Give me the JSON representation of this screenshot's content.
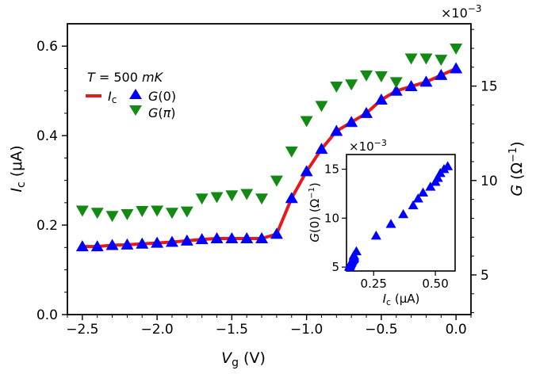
{
  "chart_data": {
    "type": "scatter",
    "annotation": "T = 500 mK",
    "xlabel": "V_g (V)",
    "ylabel_left": "I_c (µA)",
    "ylabel_right": "G (Ω⁻¹)",
    "right_exponent": "×10⁻³",
    "xlim": [
      -2.6,
      0.1
    ],
    "ylim_left": [
      0.0,
      0.65
    ],
    "ylim_right": [
      2.9,
      18.3
    ],
    "x_ticks": [
      -2.5,
      -2.0,
      -1.5,
      -1.0,
      -0.5,
      0.0
    ],
    "x_tick_labels": [
      "−2.5",
      "−2.0",
      "−1.5",
      "−1.0",
      "−0.5",
      "0.0"
    ],
    "y_left_ticks": [
      0.0,
      0.2,
      0.4,
      0.6
    ],
    "y_left_tick_labels": [
      "0.0",
      "0.2",
      "0.4",
      "0.6"
    ],
    "y_right_ticks": [
      5,
      10,
      15
    ],
    "y_right_tick_labels": [
      "5",
      "10",
      "15"
    ],
    "legend": [
      {
        "label": "I_c",
        "marker": "line",
        "color": "#e41a1c"
      },
      {
        "label": "G(0)",
        "marker": "triangle-up",
        "color": "#0000ff"
      },
      {
        "label": "G(π)",
        "marker": "triangle-down",
        "color": "#138a13"
      }
    ],
    "series": [
      {
        "name": "I_c",
        "axis": "left",
        "style": "line",
        "color": "#e41a1c",
        "x": [
          -2.5,
          -2.4,
          -2.3,
          -2.2,
          -2.1,
          -2.0,
          -1.9,
          -1.8,
          -1.7,
          -1.6,
          -1.5,
          -1.4,
          -1.3,
          -1.2,
          -1.1,
          -1.0,
          -0.9,
          -0.8,
          -0.7,
          -0.6,
          -0.5,
          -0.4,
          -0.3,
          -0.2,
          -0.1,
          0.0
        ],
        "y": [
          0.152,
          0.152,
          0.155,
          0.156,
          0.158,
          0.16,
          0.162,
          0.165,
          0.168,
          0.17,
          0.17,
          0.17,
          0.17,
          0.18,
          0.26,
          0.32,
          0.37,
          0.41,
          0.43,
          0.45,
          0.48,
          0.5,
          0.51,
          0.52,
          0.535,
          0.55
        ]
      },
      {
        "name": "G(0)",
        "axis": "left",
        "style": "triangle-up",
        "color": "#0000ff",
        "x": [
          -2.5,
          -2.4,
          -2.3,
          -2.2,
          -2.1,
          -2.0,
          -1.9,
          -1.8,
          -1.7,
          -1.6,
          -1.5,
          -1.4,
          -1.3,
          -1.2,
          -1.1,
          -1.0,
          -0.9,
          -0.8,
          -0.7,
          -0.6,
          -0.5,
          -0.4,
          -0.3,
          -0.2,
          -0.1,
          0.0
        ],
        "y": [
          0.152,
          0.152,
          0.155,
          0.156,
          0.158,
          0.16,
          0.162,
          0.165,
          0.168,
          0.17,
          0.17,
          0.17,
          0.17,
          0.18,
          0.26,
          0.32,
          0.37,
          0.41,
          0.43,
          0.45,
          0.48,
          0.5,
          0.51,
          0.52,
          0.535,
          0.55
        ]
      },
      {
        "name": "G(π)",
        "axis": "left",
        "style": "triangle-down",
        "color": "#138a13",
        "x": [
          -2.5,
          -2.4,
          -2.3,
          -2.2,
          -2.1,
          -2.0,
          -1.9,
          -1.8,
          -1.7,
          -1.6,
          -1.5,
          -1.4,
          -1.3,
          -1.2,
          -1.1,
          -1.0,
          -0.9,
          -0.8,
          -0.7,
          -0.6,
          -0.5,
          -0.4,
          -0.3,
          -0.2,
          -0.1,
          0.0
        ],
        "y": [
          0.233,
          0.228,
          0.221,
          0.225,
          0.232,
          0.233,
          0.228,
          0.231,
          0.26,
          0.263,
          0.267,
          0.27,
          0.26,
          0.3,
          0.365,
          0.433,
          0.467,
          0.51,
          0.515,
          0.535,
          0.533,
          0.52,
          0.573,
          0.573,
          0.57,
          0.595
        ]
      }
    ],
    "inset": {
      "type": "scatter",
      "xlabel": "I_c (µA)",
      "ylabel": "G(0) (Ω⁻¹)",
      "y_exponent": "×10⁻³",
      "xlim": [
        0.14,
        0.58
      ],
      "ylim": [
        4.6,
        16.5
      ],
      "x_ticks": [
        0.25,
        0.5
      ],
      "x_tick_labels": [
        "0.25",
        "0.50"
      ],
      "y_ticks": [
        5,
        10,
        15
      ],
      "y_tick_labels": [
        "5",
        "10",
        "15"
      ],
      "color": "#0000ff",
      "x": [
        0.152,
        0.152,
        0.155,
        0.156,
        0.158,
        0.16,
        0.162,
        0.165,
        0.168,
        0.17,
        0.17,
        0.17,
        0.17,
        0.18,
        0.26,
        0.32,
        0.37,
        0.41,
        0.43,
        0.45,
        0.48,
        0.5,
        0.51,
        0.52,
        0.535,
        0.55
      ],
      "y": [
        5.0,
        5.1,
        5.2,
        5.3,
        5.4,
        5.5,
        5.6,
        5.7,
        5.8,
        5.9,
        6.0,
        6.1,
        6.2,
        6.6,
        8.2,
        9.4,
        10.4,
        11.3,
        12.0,
        12.6,
        13.2,
        13.7,
        14.1,
        14.6,
        15.0,
        15.3
      ]
    }
  }
}
